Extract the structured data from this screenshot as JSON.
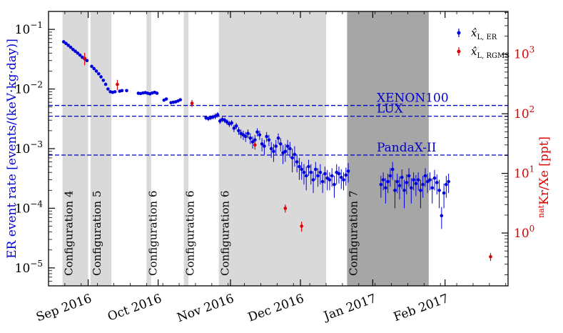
{
  "chart_data": {
    "type": "scatter",
    "ylabel": "ER event rate [events/(keV·kg·day)]",
    "ylabel_right_main": "Kr/Xe [ppt]",
    "ylabel_right_sup": "nat",
    "yscale": "log",
    "ylim": [
      5e-06,
      0.2
    ],
    "xlim": [
      "2016-08-15",
      "2017-02-28"
    ],
    "x_ticks": [
      {
        "date": "2016-09-01",
        "label": "Sep 2016"
      },
      {
        "date": "2016-10-01",
        "label": "Oct 2016"
      },
      {
        "date": "2016-11-01",
        "label": "Nov 2016"
      },
      {
        "date": "2016-12-01",
        "label": "Dec 2016"
      },
      {
        "date": "2017-01-01",
        "label": "Jan 2017"
      },
      {
        "date": "2017-02-01",
        "label": "Feb 2017"
      }
    ],
    "y_ticks_left": [
      {
        "value": 1e-05,
        "base": "10",
        "exp": "−5"
      },
      {
        "value": 0.0001,
        "base": "10",
        "exp": "−4"
      },
      {
        "value": 0.001,
        "base": "10",
        "exp": "−3"
      },
      {
        "value": 0.01,
        "base": "10",
        "exp": "−2"
      },
      {
        "value": 0.1,
        "base": "10",
        "exp": "−1"
      }
    ],
    "right_axis": {
      "ylim_ppt": [
        0.13,
        5200
      ],
      "ticks": [
        {
          "value": 1,
          "base": "10",
          "exp": "0"
        },
        {
          "value": 10,
          "base": "10",
          "exp": "1"
        },
        {
          "value": 100,
          "base": "10",
          "exp": "2"
        },
        {
          "value": 1000,
          "base": "10",
          "exp": "3"
        }
      ]
    },
    "bands": [
      {
        "start": "2016-08-21",
        "end": "2016-08-31",
        "shade": "light",
        "label": "Configuration 4"
      },
      {
        "start": "2016-09-02",
        "end": "2016-09-10",
        "shade": "light",
        "label": "Configuration 5"
      },
      {
        "start": "2016-09-26",
        "end": "2016-09-27",
        "shade": "light",
        "label": "Configuration 6"
      },
      {
        "start": "2016-10-12",
        "end": "2016-10-13",
        "shade": "light",
        "label": "Configuration 6"
      },
      {
        "start": "2016-10-27",
        "end": "2016-12-11",
        "shade": "light",
        "label": "Configuration 6"
      },
      {
        "start": "2016-12-21",
        "end": "2017-01-24",
        "shade": "dark",
        "label": "Configuration 7"
      }
    ],
    "reference_lines": [
      {
        "name": "XENON100",
        "value": 0.0053
      },
      {
        "name": "LUX",
        "value": 0.0035
      },
      {
        "name": "PandaX-II",
        "value": 0.00078
      }
    ],
    "legend": {
      "placement": "top-right",
      "entries": [
        {
          "series": "er",
          "text": "x̂",
          "sub": "L, ER"
        },
        {
          "series": "rgms",
          "text": "x̂",
          "sub": "L, RGMS"
        }
      ]
    },
    "colors": {
      "er": "#0000dd",
      "rgms": "#dd0000",
      "ref_line": "#0000cc",
      "band_light": "#d9d9d9",
      "band_dark": "#a6a6a6"
    },
    "series": [
      {
        "key": "er",
        "points": [
          [
            "2016-08-21",
            0.062,
            0
          ],
          [
            "2016-08-22",
            0.058,
            0
          ],
          [
            "2016-08-23",
            0.054,
            0
          ],
          [
            "2016-08-24",
            0.05,
            0
          ],
          [
            "2016-08-25",
            0.046,
            0
          ],
          [
            "2016-08-26",
            0.043,
            0
          ],
          [
            "2016-08-27",
            0.04,
            0
          ],
          [
            "2016-08-28",
            0.037,
            0
          ],
          [
            "2016-08-29",
            0.034,
            0
          ],
          [
            "2016-08-30",
            0.032,
            0
          ],
          [
            "2016-08-31",
            0.03,
            0
          ],
          [
            "2016-09-02",
            0.024,
            0
          ],
          [
            "2016-09-03",
            0.022,
            0
          ],
          [
            "2016-09-04",
            0.02,
            0
          ],
          [
            "2016-09-05",
            0.018,
            0
          ],
          [
            "2016-09-06",
            0.016,
            0
          ],
          [
            "2016-09-07",
            0.014,
            0
          ],
          [
            "2016-09-08",
            0.012,
            0
          ],
          [
            "2016-09-09",
            0.01,
            0
          ],
          [
            "2016-09-10",
            0.009,
            0
          ],
          [
            "2016-09-11",
            0.0088,
            0
          ],
          [
            "2016-09-12",
            0.009,
            0
          ],
          [
            "2016-09-14",
            0.0092,
            0
          ],
          [
            "2016-09-15",
            0.0094,
            0
          ],
          [
            "2016-09-17",
            0.0094,
            0
          ],
          [
            "2016-09-22",
            0.0085,
            0
          ],
          [
            "2016-09-23",
            0.0084,
            0
          ],
          [
            "2016-09-24",
            0.0086,
            0
          ],
          [
            "2016-09-25",
            0.0087,
            0
          ],
          [
            "2016-09-26",
            0.0085,
            0
          ],
          [
            "2016-09-27",
            0.0083,
            0
          ],
          [
            "2016-09-28",
            0.0086,
            0
          ],
          [
            "2016-09-29",
            0.0088,
            0
          ],
          [
            "2016-09-30",
            0.0085,
            0
          ],
          [
            "2016-10-03",
            0.0065,
            0
          ],
          [
            "2016-10-04",
            0.0068,
            0
          ],
          [
            "2016-10-06",
            0.0059,
            0
          ],
          [
            "2016-10-07",
            0.006,
            0
          ],
          [
            "2016-10-08",
            0.0061,
            0
          ],
          [
            "2016-10-09",
            0.0063,
            0
          ],
          [
            "2016-10-10",
            0.0066,
            0
          ],
          [
            "2016-10-21",
            0.0033,
            0.0003
          ],
          [
            "2016-10-22",
            0.0032,
            0.0003
          ],
          [
            "2016-10-23",
            0.0033,
            0.0003
          ],
          [
            "2016-10-24",
            0.0034,
            0.0003
          ],
          [
            "2016-10-25",
            0.0035,
            0.0004
          ],
          [
            "2016-10-26",
            0.0037,
            0.0004
          ],
          [
            "2016-10-27",
            0.0029,
            0.0003
          ],
          [
            "2016-10-28",
            0.0031,
            0.0003
          ],
          [
            "2016-10-29",
            0.003,
            0.0003
          ],
          [
            "2016-10-30",
            0.0028,
            0.0003
          ],
          [
            "2016-10-31",
            0.0026,
            0.0003
          ],
          [
            "2016-11-01",
            0.0027,
            0.0003
          ],
          [
            "2016-11-02",
            0.0022,
            0.0003
          ],
          [
            "2016-11-03",
            0.0024,
            0.0003
          ],
          [
            "2016-11-04",
            0.002,
            0.0003
          ],
          [
            "2016-11-05",
            0.0018,
            0.0003
          ],
          [
            "2016-11-06",
            0.0017,
            0.0003
          ],
          [
            "2016-11-07",
            0.0016,
            0.0003
          ],
          [
            "2016-11-08",
            0.0018,
            0.0003
          ],
          [
            "2016-11-09",
            0.0015,
            0.0003
          ],
          [
            "2016-11-10",
            0.0013,
            0.0003
          ],
          [
            "2016-11-11",
            0.0014,
            0.0003
          ],
          [
            "2016-11-12",
            0.0019,
            0.0003
          ],
          [
            "2016-11-13",
            0.0017,
            0.0003
          ],
          [
            "2016-11-14",
            0.0012,
            0.0003
          ],
          [
            "2016-11-15",
            0.0011,
            0.0003
          ],
          [
            "2016-11-16",
            0.0016,
            0.0003
          ],
          [
            "2016-11-17",
            0.0014,
            0.0003
          ],
          [
            "2016-11-18",
            0.001,
            0.0003
          ],
          [
            "2016-11-19",
            0.0009,
            0.0003
          ],
          [
            "2016-11-20",
            0.0011,
            0.0003
          ],
          [
            "2016-11-21",
            0.0015,
            0.0003
          ],
          [
            "2016-11-22",
            0.0012,
            0.0003
          ],
          [
            "2016-11-23",
            0.00085,
            0.0003
          ],
          [
            "2016-11-24",
            0.0009,
            0.0003
          ],
          [
            "2016-11-25",
            0.0011,
            0.0003
          ],
          [
            "2016-11-26",
            0.001,
            0.0003
          ],
          [
            "2016-11-27",
            0.0007,
            0.0003
          ],
          [
            "2016-11-28",
            0.0008,
            0.0003
          ],
          [
            "2016-11-29",
            0.0006,
            0.0002
          ],
          [
            "2016-11-30",
            0.0005,
            0.0002
          ],
          [
            "2016-12-01",
            0.00045,
            0.00015
          ],
          [
            "2016-12-02",
            0.0004,
            0.00015
          ],
          [
            "2016-12-03",
            0.00035,
            0.00015
          ],
          [
            "2016-12-04",
            0.0005,
            0.00015
          ],
          [
            "2016-12-05",
            0.0004,
            0.00015
          ],
          [
            "2016-12-06",
            0.0003,
            0.00012
          ],
          [
            "2016-12-07",
            0.00045,
            0.00015
          ],
          [
            "2016-12-08",
            0.00035,
            0.00012
          ],
          [
            "2016-12-09",
            0.0004,
            0.00015
          ],
          [
            "2016-12-10",
            0.00028,
            0.0001
          ],
          [
            "2016-12-11",
            0.00038,
            0.00012
          ],
          [
            "2016-12-12",
            0.00032,
            0.00012
          ],
          [
            "2016-12-13",
            0.0003,
            0.0001
          ],
          [
            "2016-12-14",
            0.00035,
            0.00012
          ],
          [
            "2016-12-15",
            0.00025,
            0.0001
          ],
          [
            "2016-12-16",
            0.0004,
            0.00015
          ],
          [
            "2016-12-17",
            0.00038,
            0.00012
          ],
          [
            "2016-12-18",
            0.00033,
            0.00012
          ],
          [
            "2016-12-19",
            0.0003,
            0.0001
          ],
          [
            "2016-12-20",
            0.00036,
            0.00012
          ],
          [
            "2016-12-21",
            0.00042,
            0.00015
          ],
          [
            "2017-01-04",
            0.00025,
            0.0001
          ],
          [
            "2017-01-05",
            0.0003,
            0.0001
          ],
          [
            "2017-01-06",
            0.00022,
            0.0001
          ],
          [
            "2017-01-07",
            0.00028,
            0.0001
          ],
          [
            "2017-01-08",
            0.00035,
            0.00012
          ],
          [
            "2017-01-09",
            0.00045,
            0.00015
          ],
          [
            "2017-01-10",
            0.0002,
            0.0001
          ],
          [
            "2017-01-11",
            0.00028,
            0.0001
          ],
          [
            "2017-01-12",
            0.00024,
            0.0001
          ],
          [
            "2017-01-13",
            0.00033,
            0.00012
          ],
          [
            "2017-01-14",
            0.0002,
            0.0001
          ],
          [
            "2017-01-15",
            0.00027,
            0.0001
          ],
          [
            "2017-01-16",
            0.00035,
            0.00012
          ],
          [
            "2017-01-17",
            0.00022,
            0.0001
          ],
          [
            "2017-01-18",
            0.0003,
            0.0001
          ],
          [
            "2017-01-19",
            0.00026,
            0.0001
          ],
          [
            "2017-01-20",
            0.0003,
            0.0001
          ],
          [
            "2017-01-21",
            0.0002,
            0.0001
          ],
          [
            "2017-01-22",
            0.00025,
            0.0001
          ],
          [
            "2017-01-23",
            0.00035,
            0.00012
          ],
          [
            "2017-01-24",
            0.00028,
            0.0001
          ],
          [
            "2017-01-25",
            0.0003,
            0.0001
          ],
          [
            "2017-01-26",
            0.00022,
            0.0001
          ],
          [
            "2017-01-27",
            0.00032,
            0.00012
          ],
          [
            "2017-01-28",
            0.00027,
            0.0001
          ],
          [
            "2017-01-29",
            0.0002,
            0.0001
          ],
          [
            "2017-01-30",
            7.5e-05,
            3e-05
          ],
          [
            "2017-01-31",
            0.00018,
            8e-05
          ],
          [
            "2017-02-01",
            0.00025,
            0.0001
          ],
          [
            "2017-02-02",
            0.00028,
            0.0001
          ]
        ]
      },
      {
        "key": "rgms",
        "points_ppt": [
          [
            "2016-08-30",
            850,
            200
          ],
          [
            "2016-09-13",
            310,
            60
          ],
          [
            "2016-10-15",
            150,
            20
          ],
          [
            "2016-11-11",
            30,
            5
          ],
          [
            "2016-11-24",
            2.6,
            0.4
          ],
          [
            "2016-12-01",
            1.3,
            0.25
          ],
          [
            "2017-02-20",
            0.4,
            0.06
          ]
        ]
      }
    ]
  }
}
